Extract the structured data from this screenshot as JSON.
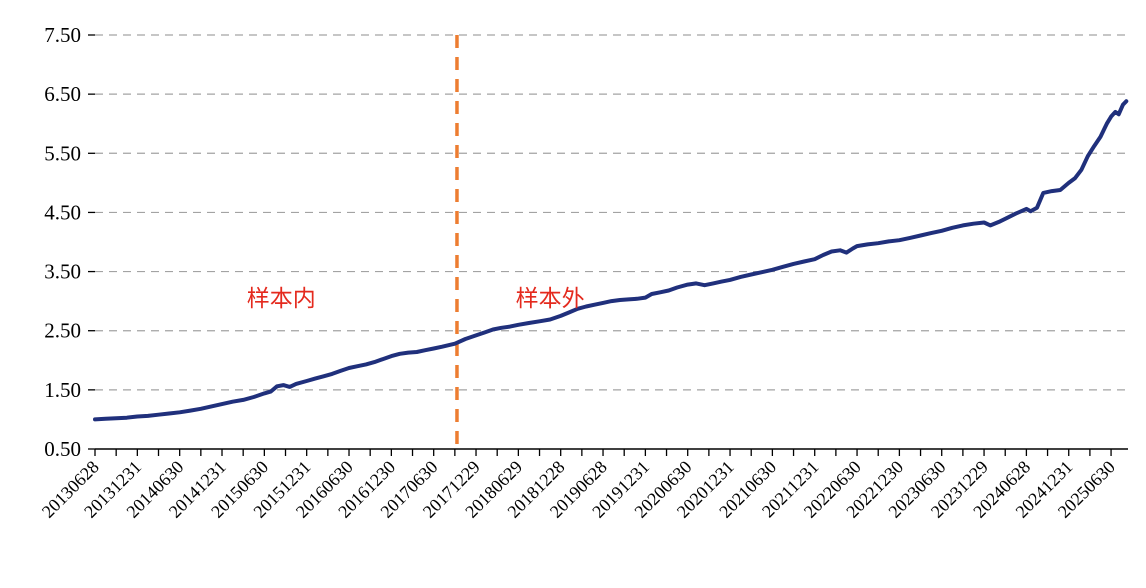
{
  "chart_data": {
    "type": "line",
    "title": "",
    "legend": "none",
    "grid": "dashed-horizontal",
    "xlim": [
      0,
      24.4
    ],
    "ylim": [
      0.5,
      7.5
    ],
    "y_ticks": [
      "0.50",
      "1.50",
      "2.50",
      "3.50",
      "4.50",
      "5.50",
      "6.50",
      "7.50"
    ],
    "x_tick_labels": [
      "20130628",
      "20131231",
      "20140630",
      "20141231",
      "20150630",
      "20151231",
      "20160630",
      "20161230",
      "20170630",
      "20171229",
      "20180629",
      "20181228",
      "20190628",
      "20191231",
      "20200630",
      "20201231",
      "20210630",
      "20211231",
      "20220630",
      "20221230",
      "20230630",
      "20231229",
      "20240628",
      "20241231",
      "20250630"
    ],
    "colors": {
      "line": "#20307C",
      "split": "#ED7D31",
      "grid": "#A3A3A3",
      "axis": "#000000",
      "annotation": "#E42A1E"
    },
    "split_line": {
      "t": 8.55,
      "style": "dashed"
    },
    "annotations": [
      {
        "name": "in-sample-label",
        "text": "样本内",
        "t": 4.4,
        "v": 3.05
      },
      {
        "name": "out-of-sample-label",
        "text": "样本外",
        "t": 10.75,
        "v": 3.05
      }
    ],
    "series": [
      {
        "name": "cumulative-net-value",
        "points": [
          [
            0,
            1.0
          ],
          [
            0.25,
            1.01
          ],
          [
            0.5,
            1.02
          ],
          [
            0.75,
            1.03
          ],
          [
            1,
            1.05
          ],
          [
            1.25,
            1.06
          ],
          [
            1.5,
            1.08
          ],
          [
            1.75,
            1.1
          ],
          [
            2,
            1.12
          ],
          [
            2.25,
            1.15
          ],
          [
            2.5,
            1.18
          ],
          [
            2.75,
            1.22
          ],
          [
            3,
            1.26
          ],
          [
            3.25,
            1.3
          ],
          [
            3.5,
            1.33
          ],
          [
            3.75,
            1.38
          ],
          [
            4,
            1.44
          ],
          [
            4.15,
            1.47
          ],
          [
            4.3,
            1.56
          ],
          [
            4.45,
            1.58
          ],
          [
            4.6,
            1.55
          ],
          [
            4.75,
            1.6
          ],
          [
            5,
            1.65
          ],
          [
            5.2,
            1.69
          ],
          [
            5.4,
            1.73
          ],
          [
            5.6,
            1.77
          ],
          [
            5.8,
            1.82
          ],
          [
            6,
            1.87
          ],
          [
            6.2,
            1.9
          ],
          [
            6.4,
            1.93
          ],
          [
            6.6,
            1.97
          ],
          [
            6.8,
            2.02
          ],
          [
            7,
            2.07
          ],
          [
            7.2,
            2.11
          ],
          [
            7.4,
            2.13
          ],
          [
            7.6,
            2.14
          ],
          [
            7.8,
            2.17
          ],
          [
            8,
            2.2
          ],
          [
            8.2,
            2.23
          ],
          [
            8.5,
            2.28
          ],
          [
            8.75,
            2.36
          ],
          [
            9,
            2.42
          ],
          [
            9.2,
            2.47
          ],
          [
            9.4,
            2.52
          ],
          [
            9.6,
            2.55
          ],
          [
            9.8,
            2.57
          ],
          [
            10,
            2.6
          ],
          [
            10.25,
            2.63
          ],
          [
            10.5,
            2.66
          ],
          [
            10.75,
            2.69
          ],
          [
            11,
            2.75
          ],
          [
            11.2,
            2.81
          ],
          [
            11.4,
            2.87
          ],
          [
            11.6,
            2.91
          ],
          [
            11.8,
            2.94
          ],
          [
            12,
            2.97
          ],
          [
            12.2,
            3.0
          ],
          [
            12.4,
            3.02
          ],
          [
            12.6,
            3.03
          ],
          [
            12.8,
            3.04
          ],
          [
            13,
            3.06
          ],
          [
            13.15,
            3.12
          ],
          [
            13.35,
            3.15
          ],
          [
            13.55,
            3.18
          ],
          [
            13.75,
            3.23
          ],
          [
            14,
            3.28
          ],
          [
            14.2,
            3.3
          ],
          [
            14.4,
            3.27
          ],
          [
            14.6,
            3.3
          ],
          [
            14.8,
            3.33
          ],
          [
            15,
            3.36
          ],
          [
            15.25,
            3.41
          ],
          [
            15.5,
            3.45
          ],
          [
            15.75,
            3.49
          ],
          [
            16,
            3.53
          ],
          [
            16.25,
            3.58
          ],
          [
            16.5,
            3.63
          ],
          [
            16.75,
            3.67
          ],
          [
            17,
            3.71
          ],
          [
            17.2,
            3.78
          ],
          [
            17.4,
            3.84
          ],
          [
            17.6,
            3.86
          ],
          [
            17.75,
            3.82
          ],
          [
            17.9,
            3.89
          ],
          [
            18,
            3.93
          ],
          [
            18.25,
            3.96
          ],
          [
            18.5,
            3.98
          ],
          [
            18.75,
            4.01
          ],
          [
            19,
            4.03
          ],
          [
            19.25,
            4.07
          ],
          [
            19.5,
            4.11
          ],
          [
            19.75,
            4.15
          ],
          [
            20,
            4.19
          ],
          [
            20.25,
            4.24
          ],
          [
            20.5,
            4.28
          ],
          [
            20.75,
            4.31
          ],
          [
            21,
            4.33
          ],
          [
            21.15,
            4.28
          ],
          [
            21.35,
            4.34
          ],
          [
            21.55,
            4.41
          ],
          [
            21.75,
            4.48
          ],
          [
            22,
            4.56
          ],
          [
            22.1,
            4.52
          ],
          [
            22.25,
            4.58
          ],
          [
            22.4,
            4.83
          ],
          [
            22.6,
            4.86
          ],
          [
            22.8,
            4.88
          ],
          [
            23,
            5.0
          ],
          [
            23.15,
            5.08
          ],
          [
            23.3,
            5.22
          ],
          [
            23.45,
            5.45
          ],
          [
            23.6,
            5.62
          ],
          [
            23.75,
            5.78
          ],
          [
            23.9,
            6.0
          ],
          [
            24,
            6.12
          ],
          [
            24.1,
            6.2
          ],
          [
            24.18,
            6.16
          ],
          [
            24.28,
            6.32
          ],
          [
            24.36,
            6.38
          ]
        ]
      }
    ]
  }
}
